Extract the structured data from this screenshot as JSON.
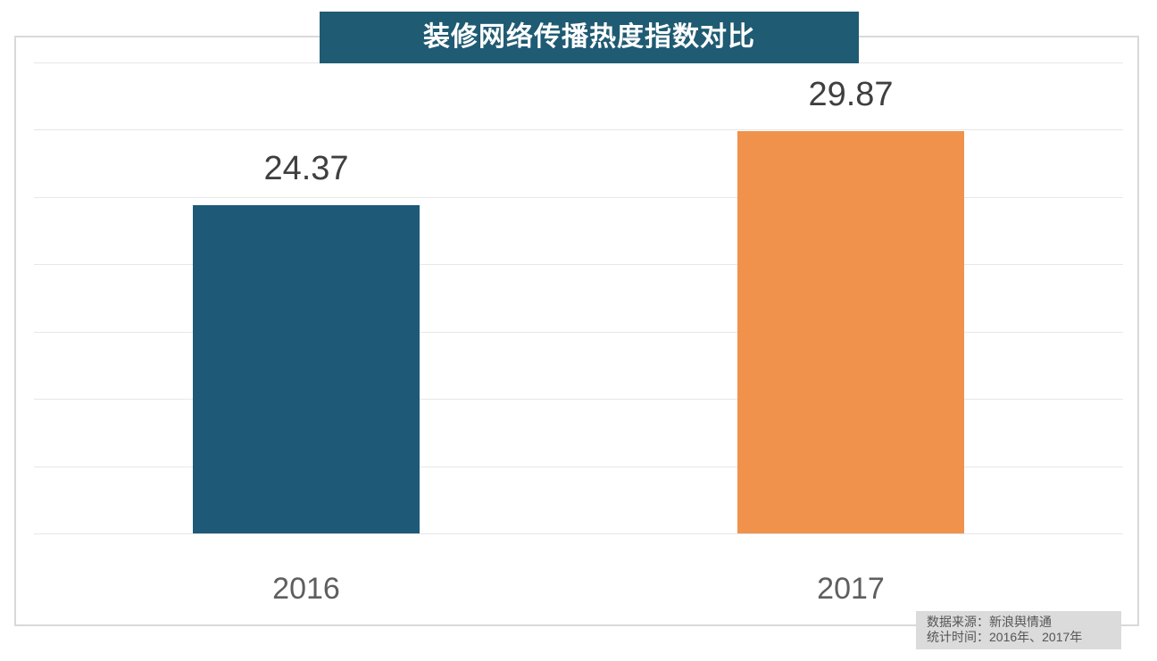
{
  "chart_data": {
    "type": "bar",
    "title": "装修网络传播热度指数对比",
    "categories": [
      "2016",
      "2017"
    ],
    "values": [
      24.37,
      29.87
    ],
    "value_labels": [
      "24.37",
      "29.87"
    ],
    "xlabel": "",
    "ylabel": "",
    "ylim": [
      0,
      35
    ],
    "grid_step": 5,
    "grid": "horizontal gridlines every 5 units, no y-axis tick labels",
    "legend": "none",
    "bar_colors": [
      "#1E5A78",
      "#F0924C"
    ]
  },
  "footer": {
    "source_line": "数据来源：新浪舆情通",
    "period_line": "统计时间：2016年、2017年"
  },
  "colors": {
    "title_bg": "#1F5B72",
    "title_text": "#FFFFFF",
    "bar_2016": "#1E5A78",
    "bar_2017": "#F0924C",
    "gridline": "#E7E7E7",
    "plot_border": "#D9D9D9",
    "value_label_text": "#3F3F3F",
    "axis_label_text": "#5E5E5E",
    "note_bg": "#DBDBDB",
    "note_text": "#555555"
  }
}
